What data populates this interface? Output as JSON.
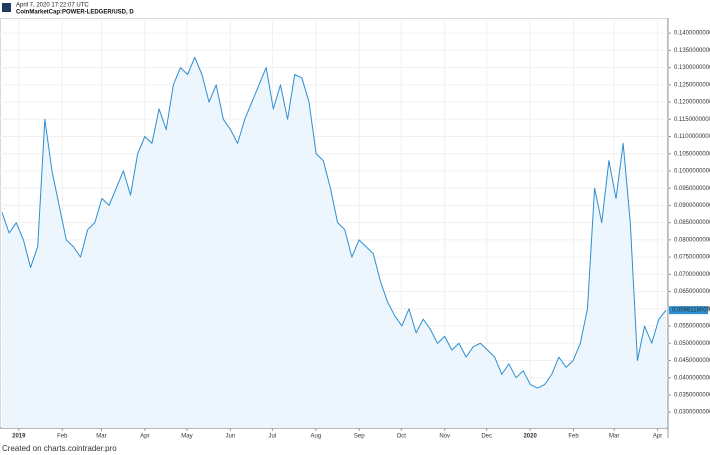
{
  "chart_data": {
    "type": "line",
    "header_date": "April 7, 2020 17:22:07 UTC",
    "title": "CoinMarketCap:POWER-LEDGER/USD, D",
    "footer": "Created on charts.cointrader.pro",
    "last_price_label": "0.0596118000",
    "color": "#2e8fd1",
    "fill": "#eef6fd",
    "grid": true,
    "xlim": [
      "2018-12-20",
      "2020-04-07"
    ],
    "xticks": [
      {
        "value": "2019-01-01",
        "label": "2019"
      },
      {
        "value": "2019-02-01",
        "label": "Feb"
      },
      {
        "value": "2019-03-01",
        "label": "Mar"
      },
      {
        "value": "2019-04-01",
        "label": "Apr"
      },
      {
        "value": "2019-05-01",
        "label": "May"
      },
      {
        "value": "2019-06-01",
        "label": "Jun"
      },
      {
        "value": "2019-07-01",
        "label": "Jul"
      },
      {
        "value": "2019-08-01",
        "label": "Aug"
      },
      {
        "value": "2019-09-01",
        "label": "Sep"
      },
      {
        "value": "2019-10-01",
        "label": "Oct"
      },
      {
        "value": "2019-11-01",
        "label": "Nov"
      },
      {
        "value": "2019-12-01",
        "label": "Dec"
      },
      {
        "value": "2020-01-01",
        "label": "2020"
      },
      {
        "value": "2020-02-01",
        "label": "Feb"
      },
      {
        "value": "2020-03-01",
        "label": "Mar"
      },
      {
        "value": "2020-04-01",
        "label": "Apr"
      }
    ],
    "ylim": [
      0.0254,
      0.1444
    ],
    "yticks": [
      {
        "value": 0.03,
        "label": "0.0300000000"
      },
      {
        "value": 0.035,
        "label": "0.0350000000"
      },
      {
        "value": 0.04,
        "label": "0.0400000000"
      },
      {
        "value": 0.045,
        "label": "0.0450000000"
      },
      {
        "value": 0.05,
        "label": "0.0500000000"
      },
      {
        "value": 0.055,
        "label": "0.0550000000"
      },
      {
        "value": 0.06,
        "label": "0.0600000000"
      },
      {
        "value": 0.065,
        "label": "0.0650000000"
      },
      {
        "value": 0.07,
        "label": "0.0700000000"
      },
      {
        "value": 0.075,
        "label": "0.0750000000"
      },
      {
        "value": 0.08,
        "label": "0.0800000000"
      },
      {
        "value": 0.085,
        "label": "0.0850000000"
      },
      {
        "value": 0.09,
        "label": "0.0900000000"
      },
      {
        "value": 0.095,
        "label": "0.0950000000"
      },
      {
        "value": 0.1,
        "label": "0.1000000000"
      },
      {
        "value": 0.105,
        "label": "0.1050000000"
      },
      {
        "value": 0.11,
        "label": "0.1100000000"
      },
      {
        "value": 0.115,
        "label": "0.1150000000"
      },
      {
        "value": 0.12,
        "label": "0.1200000000"
      },
      {
        "value": 0.125,
        "label": "0.1250000000"
      },
      {
        "value": 0.13,
        "label": "0.1300000000"
      },
      {
        "value": 0.135,
        "label": "0.1350000000"
      },
      {
        "value": 0.14,
        "label": "0.1400000000"
      }
    ],
    "values": [
      0.088,
      0.082,
      0.085,
      0.08,
      0.072,
      0.078,
      0.115,
      0.1,
      0.09,
      0.08,
      0.078,
      0.075,
      0.083,
      0.085,
      0.092,
      0.09,
      0.095,
      0.1,
      0.093,
      0.105,
      0.11,
      0.108,
      0.118,
      0.112,
      0.125,
      0.13,
      0.128,
      0.133,
      0.128,
      0.12,
      0.125,
      0.115,
      0.112,
      0.108,
      0.115,
      0.12,
      0.125,
      0.13,
      0.118,
      0.125,
      0.115,
      0.128,
      0.127,
      0.12,
      0.105,
      0.103,
      0.095,
      0.085,
      0.083,
      0.075,
      0.08,
      0.078,
      0.076,
      0.068,
      0.062,
      0.058,
      0.055,
      0.06,
      0.053,
      0.057,
      0.054,
      0.05,
      0.052,
      0.048,
      0.05,
      0.046,
      0.049,
      0.05,
      0.048,
      0.046,
      0.041,
      0.044,
      0.04,
      0.042,
      0.038,
      0.037,
      0.038,
      0.041,
      0.046,
      0.043,
      0.045,
      0.05,
      0.06,
      0.095,
      0.085,
      0.103,
      0.092,
      0.108,
      0.085,
      0.045,
      0.055,
      0.05,
      0.057,
      0.0596
    ]
  }
}
